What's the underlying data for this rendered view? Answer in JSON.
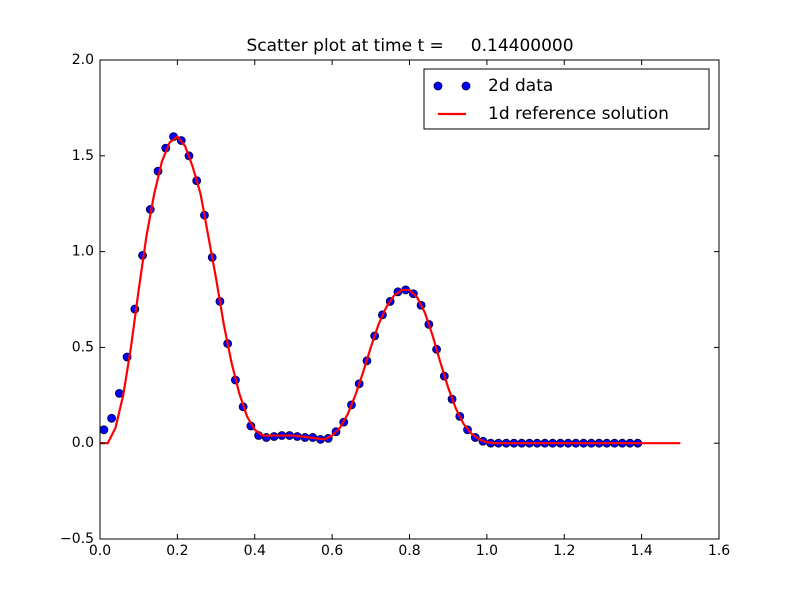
{
  "chart_data": {
    "type": "scatter",
    "title": "Scatter plot at time t =     0.14400000",
    "legend": "upper right",
    "xlim": [
      0,
      1.6
    ],
    "ylim": [
      -0.5,
      2.0
    ],
    "xticks": [
      {
        "value": 0,
        "label": "0.0"
      },
      0.2,
      0.4,
      0.6,
      0.8,
      {
        "value": 1,
        "label": "1.0"
      },
      1.2,
      1.4,
      1.6
    ],
    "yticks": [
      {
        "value": -0.5,
        "label": "−0.5"
      },
      {
        "value": 0,
        "label": "0.0"
      },
      0.5,
      {
        "value": 1,
        "label": "1.0"
      },
      1.5,
      {
        "value": 2,
        "label": "2.0"
      }
    ],
    "series": [
      {
        "name": "2d data",
        "type": "scatter",
        "color": "#0000ff",
        "x": [
          0.01,
          0.03,
          0.05,
          0.07,
          0.09,
          0.11,
          0.13,
          0.15,
          0.17,
          0.19,
          0.21,
          0.23,
          0.25,
          0.27,
          0.29,
          0.31,
          0.33,
          0.35,
          0.37,
          0.39,
          0.41,
          0.43,
          0.45,
          0.47,
          0.49,
          0.51,
          0.53,
          0.55,
          0.57,
          0.59,
          0.61,
          0.63,
          0.65,
          0.67,
          0.69,
          0.71,
          0.73,
          0.75,
          0.77,
          0.79,
          0.81,
          0.83,
          0.85,
          0.87,
          0.89,
          0.91,
          0.93,
          0.95,
          0.97,
          0.99,
          1.01,
          1.03,
          1.05,
          1.07,
          1.09,
          1.11,
          1.13,
          1.15,
          1.17,
          1.19,
          1.21,
          1.23,
          1.25,
          1.27,
          1.29,
          1.31,
          1.33,
          1.35,
          1.37,
          1.39
        ],
        "values": [
          0.07,
          0.13,
          0.26,
          0.45,
          0.7,
          0.98,
          1.22,
          1.42,
          1.54,
          1.6,
          1.58,
          1.5,
          1.37,
          1.19,
          0.97,
          0.74,
          0.52,
          0.33,
          0.19,
          0.09,
          0.04,
          0.03,
          0.035,
          0.04,
          0.04,
          0.035,
          0.03,
          0.03,
          0.02,
          0.025,
          0.06,
          0.11,
          0.2,
          0.31,
          0.43,
          0.56,
          0.67,
          0.74,
          0.79,
          0.8,
          0.78,
          0.72,
          0.62,
          0.49,
          0.35,
          0.23,
          0.14,
          0.07,
          0.03,
          0.01,
          0,
          0,
          0,
          0,
          0,
          0,
          0,
          0,
          0,
          0,
          0,
          0,
          0,
          0,
          0,
          0,
          0,
          0,
          0,
          0
        ]
      },
      {
        "name": "1d reference solution",
        "type": "line",
        "color": "#ff0000",
        "x": [
          0,
          0.02,
          0.04,
          0.06,
          0.08,
          0.1,
          0.12,
          0.14,
          0.16,
          0.18,
          0.2,
          0.22,
          0.24,
          0.26,
          0.28,
          0.3,
          0.32,
          0.34,
          0.36,
          0.38,
          0.4,
          0.42,
          0.44,
          0.46,
          0.48,
          0.5,
          0.52,
          0.54,
          0.56,
          0.58,
          0.6,
          0.62,
          0.64,
          0.66,
          0.68,
          0.7,
          0.72,
          0.74,
          0.76,
          0.78,
          0.8,
          0.82,
          0.84,
          0.86,
          0.88,
          0.9,
          0.92,
          0.94,
          0.96,
          0.98,
          1,
          1.02,
          1.04,
          1.06,
          1.08,
          1.1,
          1.12,
          1.14,
          1.16,
          1.18,
          1.2,
          1.22,
          1.24,
          1.26,
          1.28,
          1.3,
          1.32,
          1.34,
          1.36,
          1.38,
          1.4,
          1.42,
          1.44,
          1.46,
          1.48,
          1.5
        ],
        "values": [
          0,
          0,
          0.08,
          0.25,
          0.5,
          0.8,
          1.08,
          1.3,
          1.47,
          1.57,
          1.6,
          1.55,
          1.44,
          1.3,
          1.08,
          0.86,
          0.62,
          0.42,
          0.26,
          0.14,
          0.07,
          0.04,
          0.04,
          0.04,
          0.04,
          0.04,
          0.035,
          0.03,
          0.025,
          0.02,
          0.04,
          0.08,
          0.15,
          0.25,
          0.37,
          0.5,
          0.62,
          0.71,
          0.77,
          0.8,
          0.8,
          0.76,
          0.68,
          0.56,
          0.42,
          0.29,
          0.18,
          0.1,
          0.05,
          0.02,
          0.005,
          0,
          0,
          0,
          0,
          0,
          0,
          0,
          0,
          0,
          0,
          0,
          0,
          0,
          0,
          0,
          0,
          0,
          0,
          0,
          0,
          0,
          0,
          0,
          0,
          0
        ]
      }
    ]
  }
}
